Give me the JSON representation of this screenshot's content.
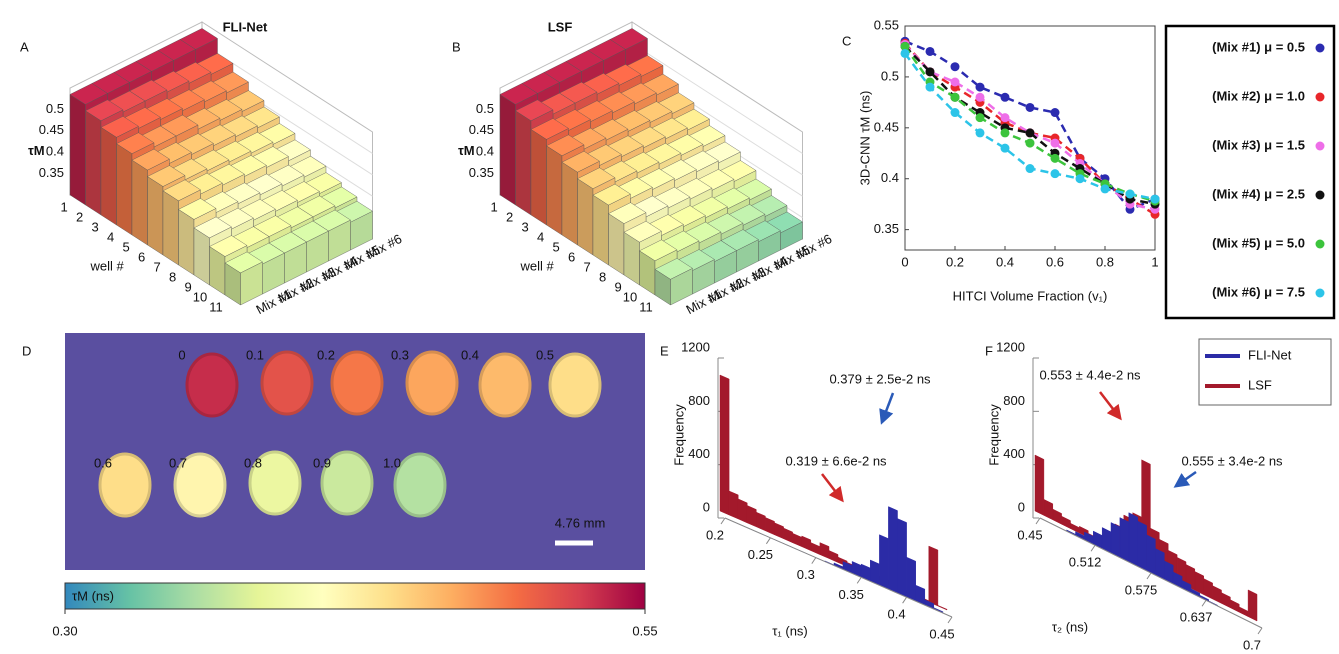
{
  "chart_data": [
    {
      "type": "bar3d",
      "label": "A",
      "title": "FLI-Net",
      "ylabel": "τM",
      "xlabel": "well #",
      "categories": [
        "1",
        "2",
        "3",
        "4",
        "5",
        "6",
        "7",
        "8",
        "9",
        "10",
        "11"
      ],
      "zlim": [
        0.3,
        0.55
      ],
      "zticks": [
        0.35,
        0.4,
        0.45,
        0.5
      ],
      "colormap": [
        "#3288bd",
        "#66c2a5",
        "#abdda4",
        "#e6f598",
        "#ffffbf",
        "#fee08b",
        "#fdae61",
        "#f46d43",
        "#d53e4f",
        "#9e0142"
      ],
      "series": [
        {
          "name": "Mix #1",
          "values": [
            0.535,
            0.52,
            0.505,
            0.49,
            0.475,
            0.46,
            0.45,
            0.43,
            0.41,
            0.39,
            0.375
          ]
        },
        {
          "name": "Mix #2",
          "values": [
            0.535,
            0.515,
            0.5,
            0.48,
            0.465,
            0.45,
            0.44,
            0.42,
            0.405,
            0.385,
            0.37
          ]
        },
        {
          "name": "Mix #3",
          "values": [
            0.535,
            0.515,
            0.495,
            0.48,
            0.46,
            0.445,
            0.435,
            0.415,
            0.4,
            0.385,
            0.37
          ]
        },
        {
          "name": "Mix #4",
          "values": [
            0.535,
            0.51,
            0.49,
            0.47,
            0.455,
            0.44,
            0.43,
            0.41,
            0.395,
            0.38,
            0.37
          ]
        },
        {
          "name": "Mix #5",
          "values": [
            0.535,
            0.505,
            0.485,
            0.465,
            0.45,
            0.435,
            0.425,
            0.405,
            0.39,
            0.38,
            0.37
          ]
        },
        {
          "name": "Mix #6",
          "values": [
            0.535,
            0.5,
            0.48,
            0.46,
            0.445,
            0.43,
            0.415,
            0.4,
            0.385,
            0.375,
            0.365
          ]
        }
      ]
    },
    {
      "type": "bar3d",
      "label": "B",
      "title": "LSF",
      "ylabel": "τM",
      "xlabel": "well #",
      "categories": [
        "1",
        "2",
        "3",
        "4",
        "5",
        "6",
        "7",
        "8",
        "9",
        "10",
        "11"
      ],
      "zlim": [
        0.3,
        0.55
      ],
      "zticks": [
        0.35,
        0.4,
        0.45,
        0.5
      ],
      "colormap": [
        "#3288bd",
        "#66c2a5",
        "#abdda4",
        "#e6f598",
        "#ffffbf",
        "#fee08b",
        "#fdae61",
        "#f46d43",
        "#d53e4f",
        "#9e0142"
      ],
      "series": [
        {
          "name": "Mix #1",
          "values": [
            0.535,
            0.52,
            0.5,
            0.485,
            0.47,
            0.455,
            0.44,
            0.42,
            0.4,
            0.38,
            0.36
          ]
        },
        {
          "name": "Mix #2",
          "values": [
            0.535,
            0.51,
            0.495,
            0.475,
            0.46,
            0.445,
            0.43,
            0.41,
            0.39,
            0.375,
            0.355
          ]
        },
        {
          "name": "Mix #3",
          "values": [
            0.535,
            0.51,
            0.49,
            0.47,
            0.455,
            0.44,
            0.425,
            0.405,
            0.385,
            0.37,
            0.35
          ]
        },
        {
          "name": "Mix #4",
          "values": [
            0.535,
            0.505,
            0.485,
            0.465,
            0.45,
            0.435,
            0.42,
            0.4,
            0.38,
            0.365,
            0.35
          ]
        },
        {
          "name": "Mix #5",
          "values": [
            0.535,
            0.5,
            0.48,
            0.46,
            0.445,
            0.43,
            0.415,
            0.395,
            0.375,
            0.36,
            0.345
          ]
        },
        {
          "name": "Mix #6",
          "values": [
            0.535,
            0.495,
            0.475,
            0.455,
            0.44,
            0.425,
            0.41,
            0.39,
            0.37,
            0.355,
            0.34
          ]
        }
      ]
    },
    {
      "type": "scatter",
      "label": "C",
      "xlabel": "HITCI Volume Fraction (v₁)",
      "ylabel": "3D-CNN τM (ns)",
      "x": [
        0,
        0.1,
        0.2,
        0.3,
        0.4,
        0.5,
        0.6,
        0.7,
        0.8,
        0.9,
        1
      ],
      "xlim": [
        0,
        1
      ],
      "xticks": [
        0,
        0.2,
        0.4,
        0.6,
        0.8,
        1
      ],
      "ylim": [
        0.33,
        0.55
      ],
      "yticks": [
        0.35,
        0.4,
        0.45,
        0.5,
        0.55
      ],
      "legend": "outside right",
      "series": [
        {
          "name": "(Mix #1) μ = 0.5",
          "color": "#2b2bb0",
          "values": [
            0.535,
            0.525,
            0.51,
            0.49,
            0.48,
            0.47,
            0.465,
            0.42,
            0.4,
            0.37,
            0.38
          ]
        },
        {
          "name": "(Mix #2) μ = 1.0",
          "color": "#e8262a",
          "values": [
            0.533,
            0.505,
            0.49,
            0.475,
            0.455,
            0.445,
            0.44,
            0.42,
            0.395,
            0.38,
            0.365
          ]
        },
        {
          "name": "(Mix #3) μ = 1.5",
          "color": "#ee6ee8",
          "values": [
            0.532,
            0.505,
            0.495,
            0.48,
            0.46,
            0.445,
            0.435,
            0.415,
            0.395,
            0.375,
            0.37
          ]
        },
        {
          "name": "(Mix #4) μ = 2.5",
          "color": "#111111",
          "values": [
            0.53,
            0.505,
            0.48,
            0.465,
            0.45,
            0.445,
            0.425,
            0.41,
            0.395,
            0.38,
            0.375
          ]
        },
        {
          "name": "(Mix #5) μ = 5.0",
          "color": "#3cc43c",
          "values": [
            0.53,
            0.495,
            0.48,
            0.46,
            0.445,
            0.435,
            0.42,
            0.405,
            0.395,
            0.385,
            0.378
          ]
        },
        {
          "name": "(Mix #6) μ = 7.5",
          "color": "#2cc4e8",
          "values": [
            0.523,
            0.49,
            0.465,
            0.445,
            0.43,
            0.41,
            0.405,
            0.4,
            0.39,
            0.385,
            0.38
          ]
        }
      ]
    },
    {
      "type": "heatmap",
      "label": "D",
      "background": "#5a4fa0",
      "categories": [
        "0",
        "0.1",
        "0.2",
        "0.3",
        "0.4",
        "0.5",
        "0.6",
        "0.7",
        "0.8",
        "0.9",
        "1.0"
      ],
      "values": [
        0.53,
        0.51,
        0.49,
        0.47,
        0.46,
        0.44,
        0.44,
        0.42,
        0.39,
        0.37,
        0.36
      ],
      "scalebar": "4.76 mm",
      "colorbar_label": "τM (ns)",
      "clim": [
        0.3,
        0.55
      ],
      "cticks": [
        {
          "value": 0.3,
          "label": "0.30"
        },
        {
          "value": 0.55,
          "label": "0.55"
        }
      ],
      "colormap": [
        "#3288bd",
        "#66c2a5",
        "#abdda4",
        "#e6f598",
        "#ffffbf",
        "#fee08b",
        "#fdae61",
        "#f46d43",
        "#d53e4f",
        "#9e0142"
      ]
    },
    {
      "type": "histogram",
      "label": "E",
      "xlabel": "τ₁ (ns)",
      "ylabel": "Frequency",
      "bins": [
        0.2,
        0.21,
        0.22,
        0.23,
        0.24,
        0.25,
        0.26,
        0.27,
        0.28,
        0.29,
        0.3,
        0.31,
        0.32,
        0.33,
        0.34,
        0.35,
        0.36,
        0.37,
        0.38,
        0.39,
        0.4,
        0.41,
        0.42,
        0.43,
        0.44,
        0.45
      ],
      "xlim": [
        0.2,
        0.45
      ],
      "xticks": [
        0.2,
        0.25,
        0.3,
        0.35,
        0.4,
        0.45
      ],
      "ylim": [
        0,
        1200
      ],
      "yticks": [
        0,
        400,
        800,
        1200
      ],
      "series": [
        {
          "color": "#2b2ba6",
          "values": [
            0,
            0,
            0,
            0,
            0,
            0,
            0,
            0,
            0,
            0,
            0,
            5,
            20,
            60,
            90,
            100,
            160,
            380,
            620,
            560,
            300,
            120,
            40,
            10,
            0
          ]
        },
        {
          "color": "#a3192b",
          "values": [
            1020,
            180,
            150,
            130,
            110,
            100,
            90,
            80,
            70,
            80,
            60,
            90,
            60,
            40,
            30,
            50,
            40,
            30,
            30,
            20,
            10,
            10,
            10,
            420,
            5
          ]
        }
      ],
      "annotations": [
        "0.379 ± 2.5e-2 ns",
        "0.319 ± 6.6e-2 ns"
      ]
    },
    {
      "type": "histogram",
      "label": "F",
      "xlabel": "τ₂ (ns)",
      "ylabel": "Frequency",
      "bins": [
        0.45,
        0.46,
        0.47,
        0.48,
        0.49,
        0.5,
        0.51,
        0.52,
        0.53,
        0.54,
        0.55,
        0.56,
        0.57,
        0.58,
        0.59,
        0.6,
        0.61,
        0.62,
        0.63,
        0.64,
        0.65,
        0.66,
        0.67,
        0.68,
        0.69,
        0.7
      ],
      "xlim": [
        0.45,
        0.7
      ],
      "xticks": [
        0.45,
        0.512,
        0.575,
        0.637,
        0.7
      ],
      "ylim": [
        0,
        1200
      ],
      "yticks": [
        0,
        400,
        800,
        1200
      ],
      "legend": "upper right",
      "series": [
        {
          "name": "FLI-Net",
          "color": "#2b2ba6",
          "values": [
            0,
            0,
            0,
            10,
            30,
            60,
            100,
            160,
            230,
            300,
            370,
            340,
            270,
            200,
            140,
            90,
            60,
            30,
            15,
            5,
            0,
            0,
            0,
            0,
            0
          ]
        },
        {
          "name": "LSF",
          "color": "#a3192b",
          "values": [
            420,
            120,
            80,
            60,
            40,
            50,
            30,
            60,
            100,
            200,
            300,
            350,
            780,
            300,
            250,
            200,
            180,
            160,
            140,
            120,
            100,
            80,
            60,
            40,
            200
          ]
        }
      ],
      "annotations": [
        "0.553 ± 4.4e-2 ns",
        "0.555 ± 3.4e-2 ns"
      ]
    }
  ]
}
